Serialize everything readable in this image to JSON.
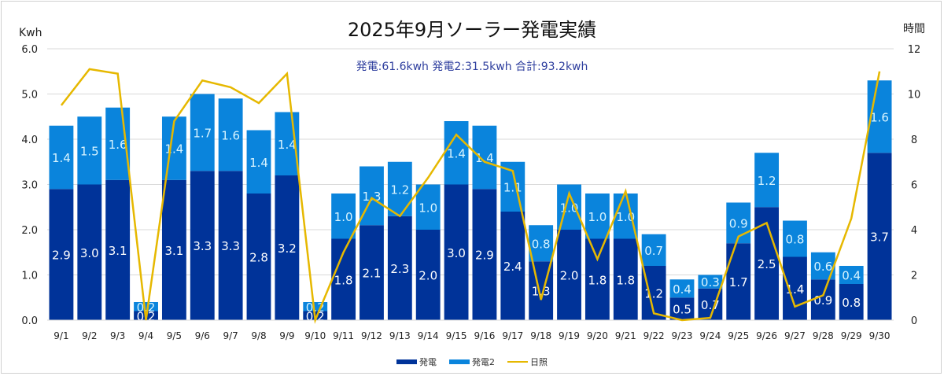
{
  "chart_data": {
    "type": "bar",
    "stacked": true,
    "title": "2025年9月ソーラー発電実績",
    "subtitle": "発電:61.6kwh  発電2:31.5kwh  合計:93.2kwh",
    "ylabel": "Kwh",
    "y2label": "時間",
    "ylim": [
      0,
      6
    ],
    "y_ticks": [
      "0.0",
      "1.0",
      "2.0",
      "3.0",
      "4.0",
      "5.0",
      "6.0"
    ],
    "y2lim": [
      0,
      12
    ],
    "y2_ticks": [
      "0",
      "2",
      "4",
      "6",
      "8",
      "10",
      "12"
    ],
    "grid": true,
    "legend_position": "bottom",
    "categories": [
      "9/1",
      "9/2",
      "9/3",
      "9/4",
      "9/5",
      "9/6",
      "9/7",
      "9/8",
      "9/9",
      "9/10",
      "9/11",
      "9/12",
      "9/13",
      "9/14",
      "9/15",
      "9/16",
      "9/17",
      "9/18",
      "9/19",
      "9/20",
      "9/21",
      "9/22",
      "9/23",
      "9/24",
      "9/25",
      "9/26",
      "9/27",
      "9/28",
      "9/29",
      "9/30"
    ],
    "series": [
      {
        "name": "発電",
        "type": "bar",
        "color": "#003399",
        "values": [
          2.9,
          3.0,
          3.1,
          0.2,
          3.1,
          3.3,
          3.3,
          2.8,
          3.2,
          0.2,
          1.8,
          2.1,
          2.3,
          2.0,
          3.0,
          2.9,
          2.4,
          1.3,
          2.0,
          1.8,
          1.8,
          1.2,
          0.5,
          0.7,
          1.7,
          2.5,
          1.4,
          0.9,
          0.8,
          3.7
        ]
      },
      {
        "name": "発電2",
        "type": "bar",
        "color": "#0a84dc",
        "values": [
          1.4,
          1.5,
          1.6,
          0.2,
          1.4,
          1.7,
          1.6,
          1.4,
          1.4,
          0.2,
          1.0,
          1.3,
          1.2,
          1.0,
          1.4,
          1.4,
          1.1,
          0.8,
          1.0,
          1.0,
          1.0,
          0.7,
          0.4,
          0.3,
          0.9,
          1.2,
          0.8,
          0.6,
          0.4,
          1.6
        ]
      },
      {
        "name": "日照",
        "type": "line",
        "axis": "right",
        "color": "#e6b800",
        "values": [
          9.5,
          11.1,
          10.9,
          0.0,
          8.8,
          10.6,
          10.3,
          9.6,
          10.9,
          0.0,
          3.0,
          5.4,
          4.6,
          6.3,
          8.2,
          7.0,
          6.6,
          0.9,
          5.6,
          2.7,
          5.7,
          0.3,
          0.0,
          0.1,
          3.7,
          4.3,
          0.6,
          1.1,
          4.5,
          11.0
        ]
      }
    ]
  }
}
